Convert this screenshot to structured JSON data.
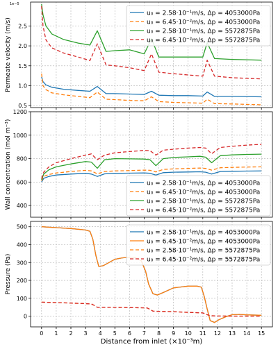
{
  "figure": {
    "xlabel": "Distance from inlet (×10⁻³m)"
  },
  "chart_data": [
    {
      "type": "line",
      "ylabel": "Permeate velocity (m/s)",
      "y_multiplier_label": "1e−5",
      "xlim": [
        -0.75,
        15.75
      ],
      "ylim": [
        0.45,
        3.1
      ],
      "xticks": [
        0,
        1,
        2,
        3,
        4,
        5,
        6,
        7,
        8,
        9,
        10,
        11,
        12,
        13,
        14,
        15
      ],
      "yticks": [
        0.5,
        1.0,
        1.5,
        2.0,
        2.5
      ],
      "ytick_labels": [
        "0.5",
        "1.0",
        "1.5",
        "2.0",
        "2.5"
      ],
      "grid": true,
      "legend_position": "top-right",
      "series": [
        {
          "name": "u₀ = 2.58·10⁻¹m/s, Δp = 4053000Pa",
          "color": "#1f77b4",
          "style": "solid",
          "x": [
            0,
            0.1,
            0.3,
            0.7,
            1.5,
            2.5,
            3.3,
            3.8,
            4.4,
            5,
            6,
            7,
            7.5,
            8,
            9,
            10,
            11,
            11.3,
            11.8,
            13,
            15
          ],
          "y": [
            1.22,
            1.1,
            1.02,
            0.96,
            0.91,
            0.88,
            0.86,
            0.98,
            0.8,
            0.8,
            0.79,
            0.78,
            0.86,
            0.76,
            0.75,
            0.75,
            0.74,
            0.84,
            0.73,
            0.73,
            0.72
          ]
        },
        {
          "name": "u₀ = 6.45·10⁻²m/s, Δp = 4053000Pa",
          "color": "#ff7f0e",
          "style": "dashed",
          "x": [
            0,
            0.1,
            0.3,
            0.7,
            1.5,
            2.5,
            3.3,
            3.8,
            4.4,
            5,
            6,
            7,
            7.5,
            8,
            9,
            10,
            11,
            11.3,
            11.8,
            13,
            15
          ],
          "y": [
            1.3,
            1.0,
            0.9,
            0.82,
            0.77,
            0.73,
            0.7,
            0.84,
            0.66,
            0.65,
            0.63,
            0.62,
            0.72,
            0.6,
            0.58,
            0.57,
            0.56,
            0.66,
            0.55,
            0.54,
            0.52
          ]
        },
        {
          "name": "u₀ = 2.58·10⁻¹m/s, Δp = 5572875Pa",
          "color": "#2ca02c",
          "style": "solid",
          "x": [
            0,
            0.1,
            0.3,
            0.7,
            1.5,
            2.5,
            3.3,
            3.8,
            4.4,
            5,
            6,
            7,
            7.5,
            8,
            9,
            10,
            11,
            11.3,
            11.8,
            13,
            15
          ],
          "y": [
            3.05,
            2.78,
            2.5,
            2.3,
            2.16,
            2.07,
            2.02,
            2.38,
            1.86,
            1.88,
            1.9,
            1.8,
            2.18,
            1.72,
            1.72,
            1.72,
            1.72,
            2.08,
            1.68,
            1.66,
            1.64
          ]
        },
        {
          "name": "u₀ = 6.45·10⁻²m/s, Δp = 5572875Pa",
          "color": "#d62728",
          "style": "dashed",
          "x": [
            0,
            0.1,
            0.3,
            0.7,
            1.5,
            2.5,
            3.3,
            3.8,
            4.4,
            5,
            6,
            7,
            7.5,
            8,
            9,
            10,
            11,
            11.3,
            11.8,
            13,
            15
          ],
          "y": [
            3.0,
            2.5,
            2.15,
            1.95,
            1.82,
            1.72,
            1.63,
            2.05,
            1.52,
            1.5,
            1.45,
            1.38,
            1.8,
            1.34,
            1.3,
            1.27,
            1.24,
            1.64,
            1.24,
            1.2,
            1.17
          ]
        }
      ]
    },
    {
      "type": "line",
      "ylabel": "Wall concentration (mol m⁻³)",
      "xlim": [
        -0.75,
        15.75
      ],
      "ylim": [
        300,
        1200
      ],
      "xticks": [
        0,
        1,
        2,
        3,
        4,
        5,
        6,
        7,
        8,
        9,
        10,
        11,
        12,
        13,
        14,
        15
      ],
      "yticks": [
        400,
        600,
        800,
        1000,
        1200
      ],
      "ytick_labels": [
        "400",
        "600",
        "800",
        "1000",
        "1200"
      ],
      "grid": true,
      "legend_position": "lower-right",
      "series": [
        {
          "name": "u₀ = 2.58·10⁻¹m/s, Δp = 4053000Pa",
          "color": "#1f77b4",
          "style": "solid",
          "x": [
            0,
            0.15,
            0.5,
            1,
            2,
            3,
            3.4,
            3.8,
            4.3,
            5,
            6,
            7,
            7.4,
            7.8,
            8.3,
            9,
            10,
            10.8,
            11.2,
            11.6,
            12.2,
            13,
            14,
            15
          ],
          "y": [
            600,
            632,
            648,
            660,
            668,
            675,
            668,
            648,
            670,
            674,
            676,
            678,
            675,
            660,
            680,
            684,
            686,
            688,
            684,
            668,
            690,
            692,
            694,
            695
          ]
        },
        {
          "name": "u₀ = 6.45·10⁻²m/s, Δp = 4053000Pa",
          "color": "#ff7f0e",
          "style": "dashed",
          "x": [
            0,
            0.15,
            0.5,
            1,
            2,
            3,
            3.4,
            3.8,
            4.3,
            5,
            6,
            7,
            7.4,
            7.8,
            8.3,
            9,
            10,
            10.8,
            11.2,
            11.6,
            12.2,
            13,
            14,
            15
          ],
          "y": [
            610,
            648,
            665,
            678,
            690,
            700,
            695,
            670,
            690,
            695,
            698,
            702,
            700,
            686,
            708,
            712,
            716,
            720,
            716,
            702,
            722,
            725,
            728,
            730
          ]
        },
        {
          "name": "u₀ = 2.58·10⁻¹m/s, Δp = 5572875Pa",
          "color": "#2ca02c",
          "style": "solid",
          "x": [
            0,
            0.15,
            0.5,
            1,
            2,
            3,
            3.4,
            3.8,
            4.3,
            5,
            6,
            7,
            7.4,
            7.8,
            8.3,
            9,
            10,
            10.8,
            11.2,
            11.6,
            12.2,
            13,
            14,
            15
          ],
          "y": [
            620,
            668,
            705,
            730,
            755,
            775,
            770,
            718,
            790,
            800,
            798,
            796,
            790,
            740,
            800,
            810,
            815,
            820,
            812,
            765,
            825,
            832,
            836,
            838
          ]
        },
        {
          "name": "u₀ = 6.45·10⁻²m/s, Δp = 5572875Pa",
          "color": "#d62728",
          "style": "dashed",
          "x": [
            0,
            0.15,
            0.5,
            1,
            2,
            3,
            3.4,
            3.8,
            4.3,
            5,
            6,
            7,
            7.4,
            7.8,
            8.3,
            9,
            10,
            10.8,
            11.2,
            11.6,
            12.2,
            13,
            14,
            15
          ],
          "y": [
            630,
            685,
            730,
            765,
            800,
            830,
            840,
            790,
            830,
            850,
            860,
            870,
            868,
            830,
            872,
            880,
            890,
            895,
            890,
            842,
            895,
            905,
            915,
            922
          ]
        }
      ]
    },
    {
      "type": "line",
      "ylabel": "Pressure (Pa)",
      "xlim": [
        -0.75,
        15.75
      ],
      "ylim": [
        -60,
        530
      ],
      "xticks": [
        0,
        1,
        2,
        3,
        4,
        5,
        6,
        7,
        8,
        9,
        10,
        11,
        12,
        13,
        14,
        15
      ],
      "xtick_labels": [
        "0",
        "1",
        "2",
        "3",
        "4",
        "5",
        "6",
        "7",
        "8",
        "9",
        "10",
        "11",
        "12",
        "13",
        "14",
        "15"
      ],
      "yticks": [
        0,
        100,
        200,
        300,
        400,
        500
      ],
      "ytick_labels": [
        "0",
        "100",
        "200",
        "300",
        "400",
        "500"
      ],
      "grid": true,
      "legend_position": "top-right",
      "series": [
        {
          "name": "u₀ = 2.58·10⁻¹m/s, Δp = 4053000Pa",
          "color": "#1f77b4",
          "style": "solid",
          "x": [
            0,
            1,
            2,
            3,
            3.3,
            3.5,
            3.7,
            3.9,
            4.2,
            4.6,
            5,
            5.5,
            6,
            6.4,
            6.8,
            7.1,
            7.3,
            7.6,
            7.9,
            8.3,
            9,
            10,
            10.6,
            10.9,
            11.1,
            11.3,
            11.5,
            11.8,
            12.1,
            12.6,
            13,
            13.5,
            14,
            15
          ],
          "y": [
            500,
            495,
            490,
            482,
            475,
            430,
            340,
            278,
            282,
            300,
            318,
            326,
            330,
            328,
            310,
            250,
            180,
            125,
            118,
            132,
            158,
            168,
            168,
            162,
            110,
            40,
            -25,
            -35,
            -20,
            -2,
            8,
            10,
            7,
            5
          ]
        },
        {
          "name": "u₀ = 6.45·10⁻²m/s, Δp = 4053000Pa",
          "color": "#ff7f0e",
          "style": "solid",
          "x": [
            0,
            1,
            2,
            3,
            3.3,
            3.5,
            3.7,
            3.9,
            4.2,
            4.6,
            5,
            5.5,
            6,
            6.4,
            6.8,
            7.1,
            7.3,
            7.6,
            7.9,
            8.3,
            9,
            10,
            10.6,
            10.9,
            11.1,
            11.3,
            11.5,
            11.8,
            12.1,
            12.6,
            13,
            13.5,
            14,
            15
          ],
          "y": [
            500,
            495,
            490,
            482,
            475,
            430,
            340,
            278,
            282,
            300,
            318,
            326,
            330,
            328,
            310,
            250,
            180,
            125,
            118,
            132,
            158,
            168,
            168,
            162,
            110,
            40,
            -25,
            -35,
            -20,
            -2,
            8,
            10,
            7,
            5
          ]
        },
        {
          "name": "u₀ = 2.58·10⁻¹m/s, Δp = 5572875Pa",
          "color": "#ff7f0e",
          "style": "dashed",
          "x": [
            0,
            1,
            2,
            3,
            3.4,
            3.6,
            3.8,
            4.5,
            6,
            7.2,
            7.4,
            7.6,
            8,
            9,
            10,
            11,
            11.2,
            11.4,
            11.6,
            12,
            13,
            14,
            15
          ],
          "y": [
            78,
            76,
            73,
            70,
            68,
            60,
            50,
            50,
            48,
            46,
            38,
            28,
            27,
            25,
            21,
            18,
            12,
            5,
            2,
            1,
            0,
            0,
            0
          ]
        },
        {
          "name": "u₀ = 6.45·10⁻²m/s, Δp = 5572875Pa",
          "color": "#d62728",
          "style": "dashed",
          "x": [
            0,
            1,
            2,
            3,
            3.4,
            3.6,
            3.8,
            4.5,
            6,
            7.2,
            7.4,
            7.6,
            8,
            9,
            10,
            11,
            11.2,
            11.4,
            11.6,
            12,
            13,
            14,
            15
          ],
          "y": [
            78,
            76,
            73,
            70,
            68,
            60,
            50,
            50,
            48,
            46,
            38,
            28,
            27,
            25,
            21,
            18,
            12,
            5,
            2,
            1,
            0,
            0,
            0
          ]
        }
      ]
    }
  ]
}
